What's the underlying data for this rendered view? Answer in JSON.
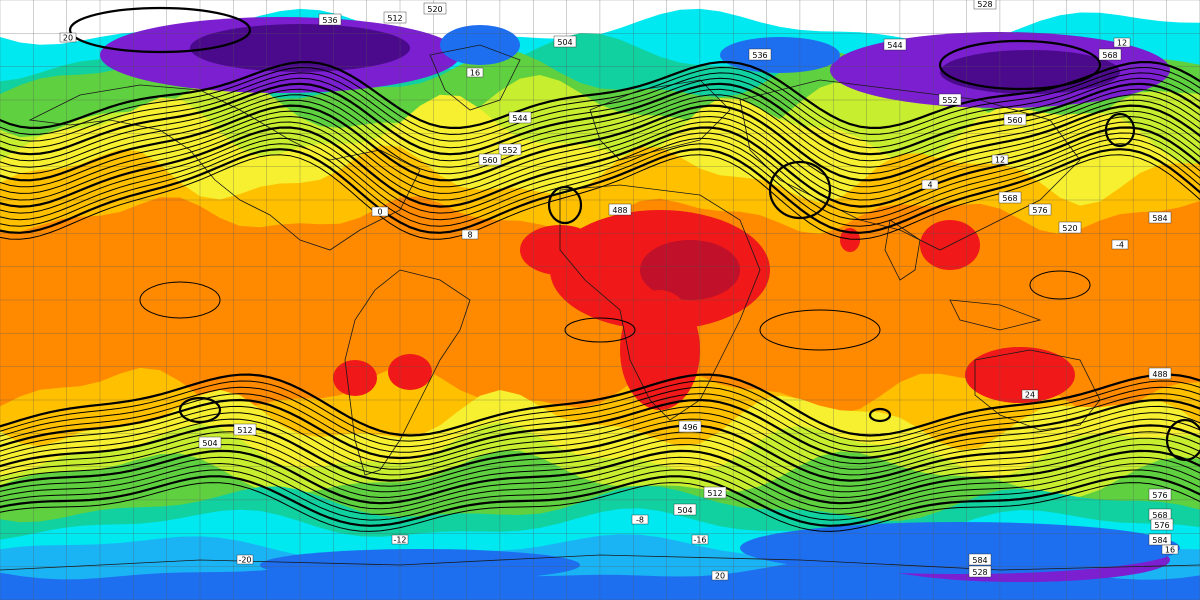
{
  "map": {
    "palette": {
      "deep_purple": "#4b0a8c",
      "purple": "#7b1fd0",
      "blue": "#1e6ff0",
      "light_blue": "#1ab4f5",
      "cyan": "#00e8f0",
      "teal": "#12d1a0",
      "green": "#5fd040",
      "yellow_green": "#c8ee30",
      "yellow": "#f6f030",
      "gold": "#ffc000",
      "orange": "#ff8a00",
      "red": "#f01818",
      "dark_red": "#c0102a"
    },
    "height_labels": [
      "520",
      "512",
      "504",
      "528",
      "536",
      "544",
      "552",
      "560",
      "568",
      "576",
      "584",
      "488",
      "496",
      "504",
      "512",
      "520",
      "528",
      "536",
      "544",
      "552",
      "560",
      "568",
      "576",
      "584",
      "504",
      "512",
      "488",
      "568",
      "576",
      "584"
    ],
    "temp_labels": [
      "20",
      "16",
      "12",
      "8",
      "4",
      "0",
      "-4",
      "-8",
      "-12",
      "-16",
      "-20",
      "24",
      "20",
      "16",
      "12"
    ]
  }
}
